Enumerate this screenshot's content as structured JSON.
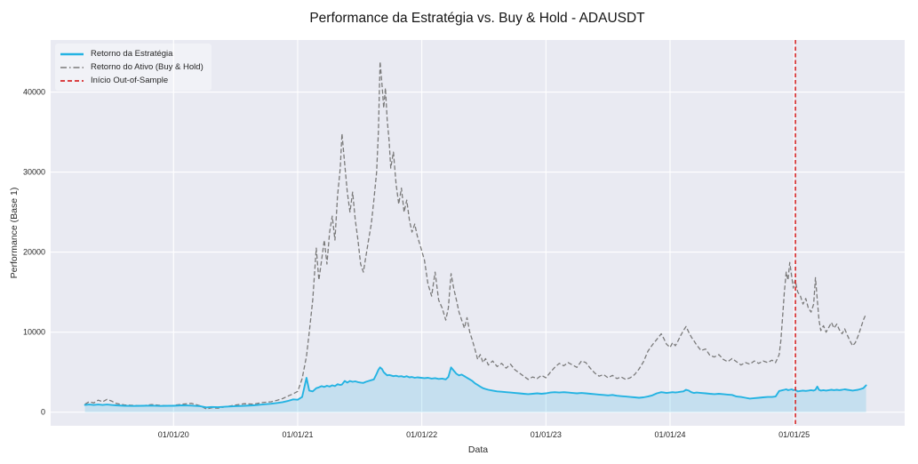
{
  "title": "Performance da Estratégia vs. Buy & Hold - ADAUSDT",
  "xlabel": "Data",
  "ylabel": "Performance (Base 1)",
  "legend": [
    {
      "label": "Retorno da Estratégia",
      "color": "#24b3e2",
      "style": "solid"
    },
    {
      "label": "Retorno do Ativo (Buy & Hold)",
      "color": "#7a7a7a",
      "style": "dashed"
    },
    {
      "label": "Início Out-of-Sample",
      "color": "#d62728",
      "style": "dashed"
    }
  ],
  "colors": {
    "figure_bg": "#ffffff",
    "plot_bg": "#e9eaf2",
    "grid": "#ffffff",
    "strategy": "#24b3e2",
    "strategy_fill": "rgba(36,179,226,0.18)",
    "buyhold": "#7a7a7a",
    "vline": "#d62728",
    "text": "#262626"
  },
  "chart_data": {
    "type": "line",
    "title": "Performance da Estratégia vs. Buy & Hold - ADAUSDT",
    "xlabel": "Data",
    "ylabel": "Performance (Base 1)",
    "grid": true,
    "legend_position": "upper-left",
    "xlim": [
      2019.01,
      2025.89
    ],
    "ylim": [
      -1700,
      46500
    ],
    "y_ticks": [
      0,
      10000,
      20000,
      30000,
      40000
    ],
    "x_ticks": [
      {
        "value": 2020,
        "label": "01/01/20"
      },
      {
        "value": 2021,
        "label": "01/01/21"
      },
      {
        "value": 2022,
        "label": "01/01/22"
      },
      {
        "value": 2023,
        "label": "01/01/23"
      },
      {
        "value": 2024,
        "label": "01/01/24"
      },
      {
        "value": 2025,
        "label": "01/01/25"
      }
    ],
    "vline": {
      "x": 2025.01,
      "label": "Início Out-of-Sample"
    },
    "x": [
      2019.286,
      2019.321,
      2019.357,
      2019.393,
      2019.429,
      2019.464,
      2019.5,
      2019.536,
      2019.607,
      2019.679,
      2019.75,
      2019.821,
      2019.893,
      2019.964,
      2020.0,
      2020.071,
      2020.143,
      2020.214,
      2020.264,
      2020.307,
      2020.357,
      2020.429,
      2020.5,
      2020.571,
      2020.643,
      2020.714,
      2020.786,
      2020.836,
      2020.879,
      2020.921,
      2020.964,
      2021.0,
      2021.036,
      2021.071,
      2021.093,
      2021.121,
      2021.15,
      2021.171,
      2021.193,
      2021.214,
      2021.236,
      2021.257,
      2021.279,
      2021.3,
      2021.321,
      2021.343,
      2021.357,
      2021.379,
      2021.4,
      2021.421,
      2021.443,
      2021.464,
      2021.486,
      2021.507,
      2021.529,
      2021.55,
      2021.571,
      2021.593,
      2021.614,
      2021.636,
      2021.65,
      2021.664,
      2021.679,
      2021.693,
      2021.707,
      2021.721,
      2021.736,
      2021.75,
      2021.771,
      2021.793,
      2021.814,
      2021.836,
      2021.857,
      2021.879,
      2021.9,
      2021.921,
      2021.943,
      2021.964,
      2021.993,
      2022.021,
      2022.05,
      2022.079,
      2022.107,
      2022.136,
      2022.164,
      2022.193,
      2022.214,
      2022.236,
      2022.257,
      2022.279,
      2022.3,
      2022.321,
      2022.343,
      2022.364,
      2022.386,
      2022.407,
      2022.429,
      2022.45,
      2022.471,
      2022.493,
      2022.514,
      2022.536,
      2022.571,
      2022.607,
      2022.643,
      2022.679,
      2022.714,
      2022.75,
      2022.786,
      2022.821,
      2022.857,
      2022.893,
      2022.929,
      2022.964,
      2023.0,
      2023.036,
      2023.071,
      2023.107,
      2023.143,
      2023.179,
      2023.214,
      2023.25,
      2023.286,
      2023.321,
      2023.357,
      2023.393,
      2023.429,
      2023.464,
      2023.5,
      2023.536,
      2023.571,
      2023.607,
      2023.643,
      2023.679,
      2023.714,
      2023.75,
      2023.786,
      2023.821,
      2023.857,
      2023.893,
      2023.929,
      2023.95,
      2023.971,
      2024.0,
      2024.021,
      2024.043,
      2024.064,
      2024.086,
      2024.107,
      2024.129,
      2024.15,
      2024.171,
      2024.193,
      2024.214,
      2024.25,
      2024.286,
      2024.321,
      2024.357,
      2024.393,
      2024.429,
      2024.464,
      2024.5,
      2024.536,
      2024.571,
      2024.607,
      2024.643,
      2024.679,
      2024.714,
      2024.75,
      2024.786,
      2024.821,
      2024.85,
      2024.879,
      2024.893,
      2024.907,
      2024.921,
      2024.936,
      2024.95,
      2024.964,
      2024.979,
      2024.993,
      2025.007,
      2025.029,
      2025.05,
      2025.071,
      2025.093,
      2025.114,
      2025.136,
      2025.157,
      2025.171,
      2025.186,
      2025.2,
      2025.214,
      2025.236,
      2025.257,
      2025.279,
      2025.3,
      2025.321,
      2025.343,
      2025.364,
      2025.386,
      2025.407,
      2025.429,
      2025.45,
      2025.471,
      2025.493,
      2025.514,
      2025.536,
      2025.557,
      2025.579
    ],
    "series": [
      {
        "name": "Retorno da Estratégia",
        "fill_to_zero": true,
        "values": [
          900,
          950,
          900,
          950,
          900,
          950,
          900,
          850,
          800,
          780,
          800,
          820,
          780,
          800,
          800,
          850,
          820,
          750,
          600,
          650,
          620,
          700,
          750,
          800,
          850,
          950,
          1050,
          1150,
          1250,
          1400,
          1600,
          1550,
          1900,
          4300,
          2700,
          2600,
          3000,
          3100,
          3250,
          3150,
          3300,
          3200,
          3350,
          3250,
          3500,
          3400,
          3450,
          3900,
          3700,
          3900,
          3800,
          3850,
          3750,
          3700,
          3650,
          3800,
          3900,
          4000,
          4100,
          4800,
          5300,
          5600,
          5400,
          5000,
          4800,
          4600,
          4650,
          4600,
          4500,
          4550,
          4450,
          4500,
          4400,
          4500,
          4350,
          4400,
          4300,
          4350,
          4300,
          4250,
          4300,
          4200,
          4250,
          4150,
          4200,
          4100,
          4400,
          5600,
          5200,
          4800,
          4600,
          4700,
          4500,
          4300,
          4100,
          3900,
          3600,
          3400,
          3200,
          3000,
          2900,
          2800,
          2700,
          2600,
          2550,
          2500,
          2450,
          2400,
          2350,
          2300,
          2250,
          2300,
          2350,
          2300,
          2350,
          2450,
          2500,
          2450,
          2500,
          2450,
          2400,
          2350,
          2400,
          2350,
          2300,
          2250,
          2200,
          2150,
          2100,
          2150,
          2050,
          2000,
          1950,
          1900,
          1850,
          1800,
          1850,
          1950,
          2100,
          2350,
          2500,
          2450,
          2400,
          2450,
          2500,
          2450,
          2500,
          2550,
          2600,
          2800,
          2700,
          2500,
          2400,
          2450,
          2400,
          2350,
          2300,
          2250,
          2300,
          2250,
          2200,
          2150,
          1950,
          1900,
          1800,
          1700,
          1750,
          1800,
          1850,
          1900,
          1900,
          1950,
          2650,
          2700,
          2750,
          2800,
          2850,
          2750,
          2800,
          2850,
          2750,
          2800,
          2600,
          2650,
          2700,
          2650,
          2700,
          2750,
          2700,
          2800,
          3200,
          2800,
          2700,
          2750,
          2700,
          2750,
          2800,
          2750,
          2800,
          2750,
          2800,
          2850,
          2800,
          2750,
          2700,
          2750,
          2800,
          2900,
          3000,
          3350
        ]
      },
      {
        "name": "Retorno do Ativo (Buy & Hold)",
        "fill_to_zero": false,
        "values": [
          1000,
          1300,
          1150,
          1500,
          1300,
          1600,
          1400,
          1100,
          900,
          850,
          800,
          950,
          850,
          800,
          850,
          1000,
          1100,
          800,
          400,
          550,
          500,
          700,
          900,
          1050,
          1000,
          1200,
          1300,
          1500,
          1700,
          2000,
          2300,
          2600,
          4200,
          7000,
          10000,
          14000,
          20500,
          16500,
          19000,
          21500,
          18500,
          22500,
          24500,
          21500,
          27000,
          30500,
          34800,
          31000,
          27500,
          25000,
          27500,
          24000,
          21500,
          18500,
          17500,
          19500,
          21500,
          23500,
          26500,
          30000,
          35000,
          43800,
          41000,
          38000,
          40500,
          36500,
          34000,
          30500,
          32500,
          28500,
          26000,
          28000,
          25000,
          26500,
          24000,
          22500,
          23500,
          22000,
          20500,
          19000,
          16000,
          14500,
          17500,
          14000,
          13000,
          11500,
          13000,
          17300,
          15500,
          14000,
          12500,
          11500,
          10500,
          11800,
          10000,
          9000,
          7800,
          6600,
          7200,
          6200,
          6700,
          5900,
          6400,
          5700,
          6100,
          5500,
          6000,
          5300,
          4900,
          4500,
          4100,
          4400,
          4200,
          4600,
          4300,
          5000,
          5600,
          6100,
          5800,
          6200,
          5900,
          5600,
          6400,
          6200,
          5500,
          4900,
          4500,
          4700,
          4300,
          4600,
          4200,
          4400,
          4100,
          4300,
          4700,
          5400,
          6300,
          7600,
          8400,
          9100,
          9800,
          9200,
          8500,
          8100,
          8700,
          8300,
          8900,
          9600,
          10200,
          10700,
          10000,
          9400,
          8900,
          8400,
          7700,
          7900,
          7100,
          6900,
          7200,
          6600,
          6300,
          6700,
          6300,
          5900,
          6200,
          6000,
          6400,
          6100,
          6400,
          6200,
          6500,
          6200,
          7200,
          9000,
          12000,
          15000,
          17500,
          16500,
          18700,
          17000,
          15500,
          16500,
          15000,
          14500,
          13500,
          14200,
          13000,
          12500,
          13500,
          16800,
          14000,
          11500,
          10200,
          10800,
          10000,
          10600,
          11200,
          10500,
          11000,
          10300,
          9800,
          10400,
          9600,
          8900,
          8300,
          8700,
          9500,
          10500,
          11500,
          12300
        ]
      }
    ]
  }
}
